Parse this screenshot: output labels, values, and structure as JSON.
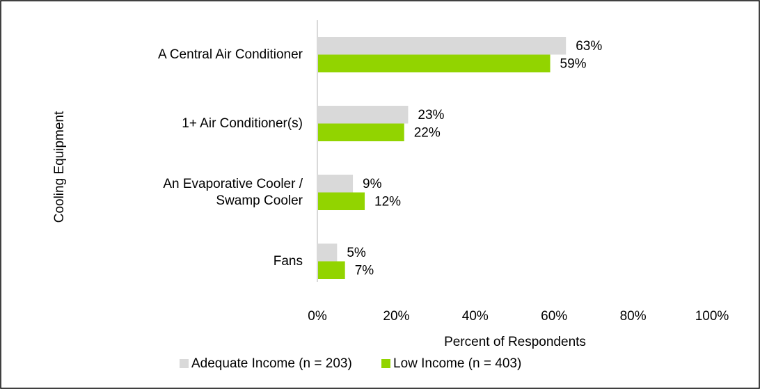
{
  "chart_data": {
    "type": "bar",
    "orientation": "horizontal",
    "categories": [
      "A Central Air Conditioner",
      "1+ Air Conditioner(s)",
      "An Evaporative Cooler / Swamp Cooler",
      "Fans"
    ],
    "series": [
      {
        "name": "Adequate Income (n = 203)",
        "color": "#d9d9d9",
        "values": [
          63,
          23,
          9,
          5
        ],
        "value_labels": [
          "63%",
          "23%",
          "9%",
          "5%"
        ]
      },
      {
        "name": "Low Income (n = 403)",
        "color": "#92d400",
        "values": [
          59,
          22,
          12,
          7
        ],
        "value_labels": [
          "59%",
          "22%",
          "12%",
          "7%"
        ]
      }
    ],
    "xlim": [
      0,
      100
    ],
    "xticks": [
      {
        "value": 0,
        "label": "0%"
      },
      {
        "value": 20,
        "label": "20%"
      },
      {
        "value": 40,
        "label": "40%"
      },
      {
        "value": 60,
        "label": "60%"
      },
      {
        "value": 80,
        "label": "80%"
      },
      {
        "value": 100,
        "label": "100%"
      }
    ],
    "xlabel": "Percent of Respondents",
    "ylabel": "Cooling Equipment",
    "legend": "bottom"
  }
}
